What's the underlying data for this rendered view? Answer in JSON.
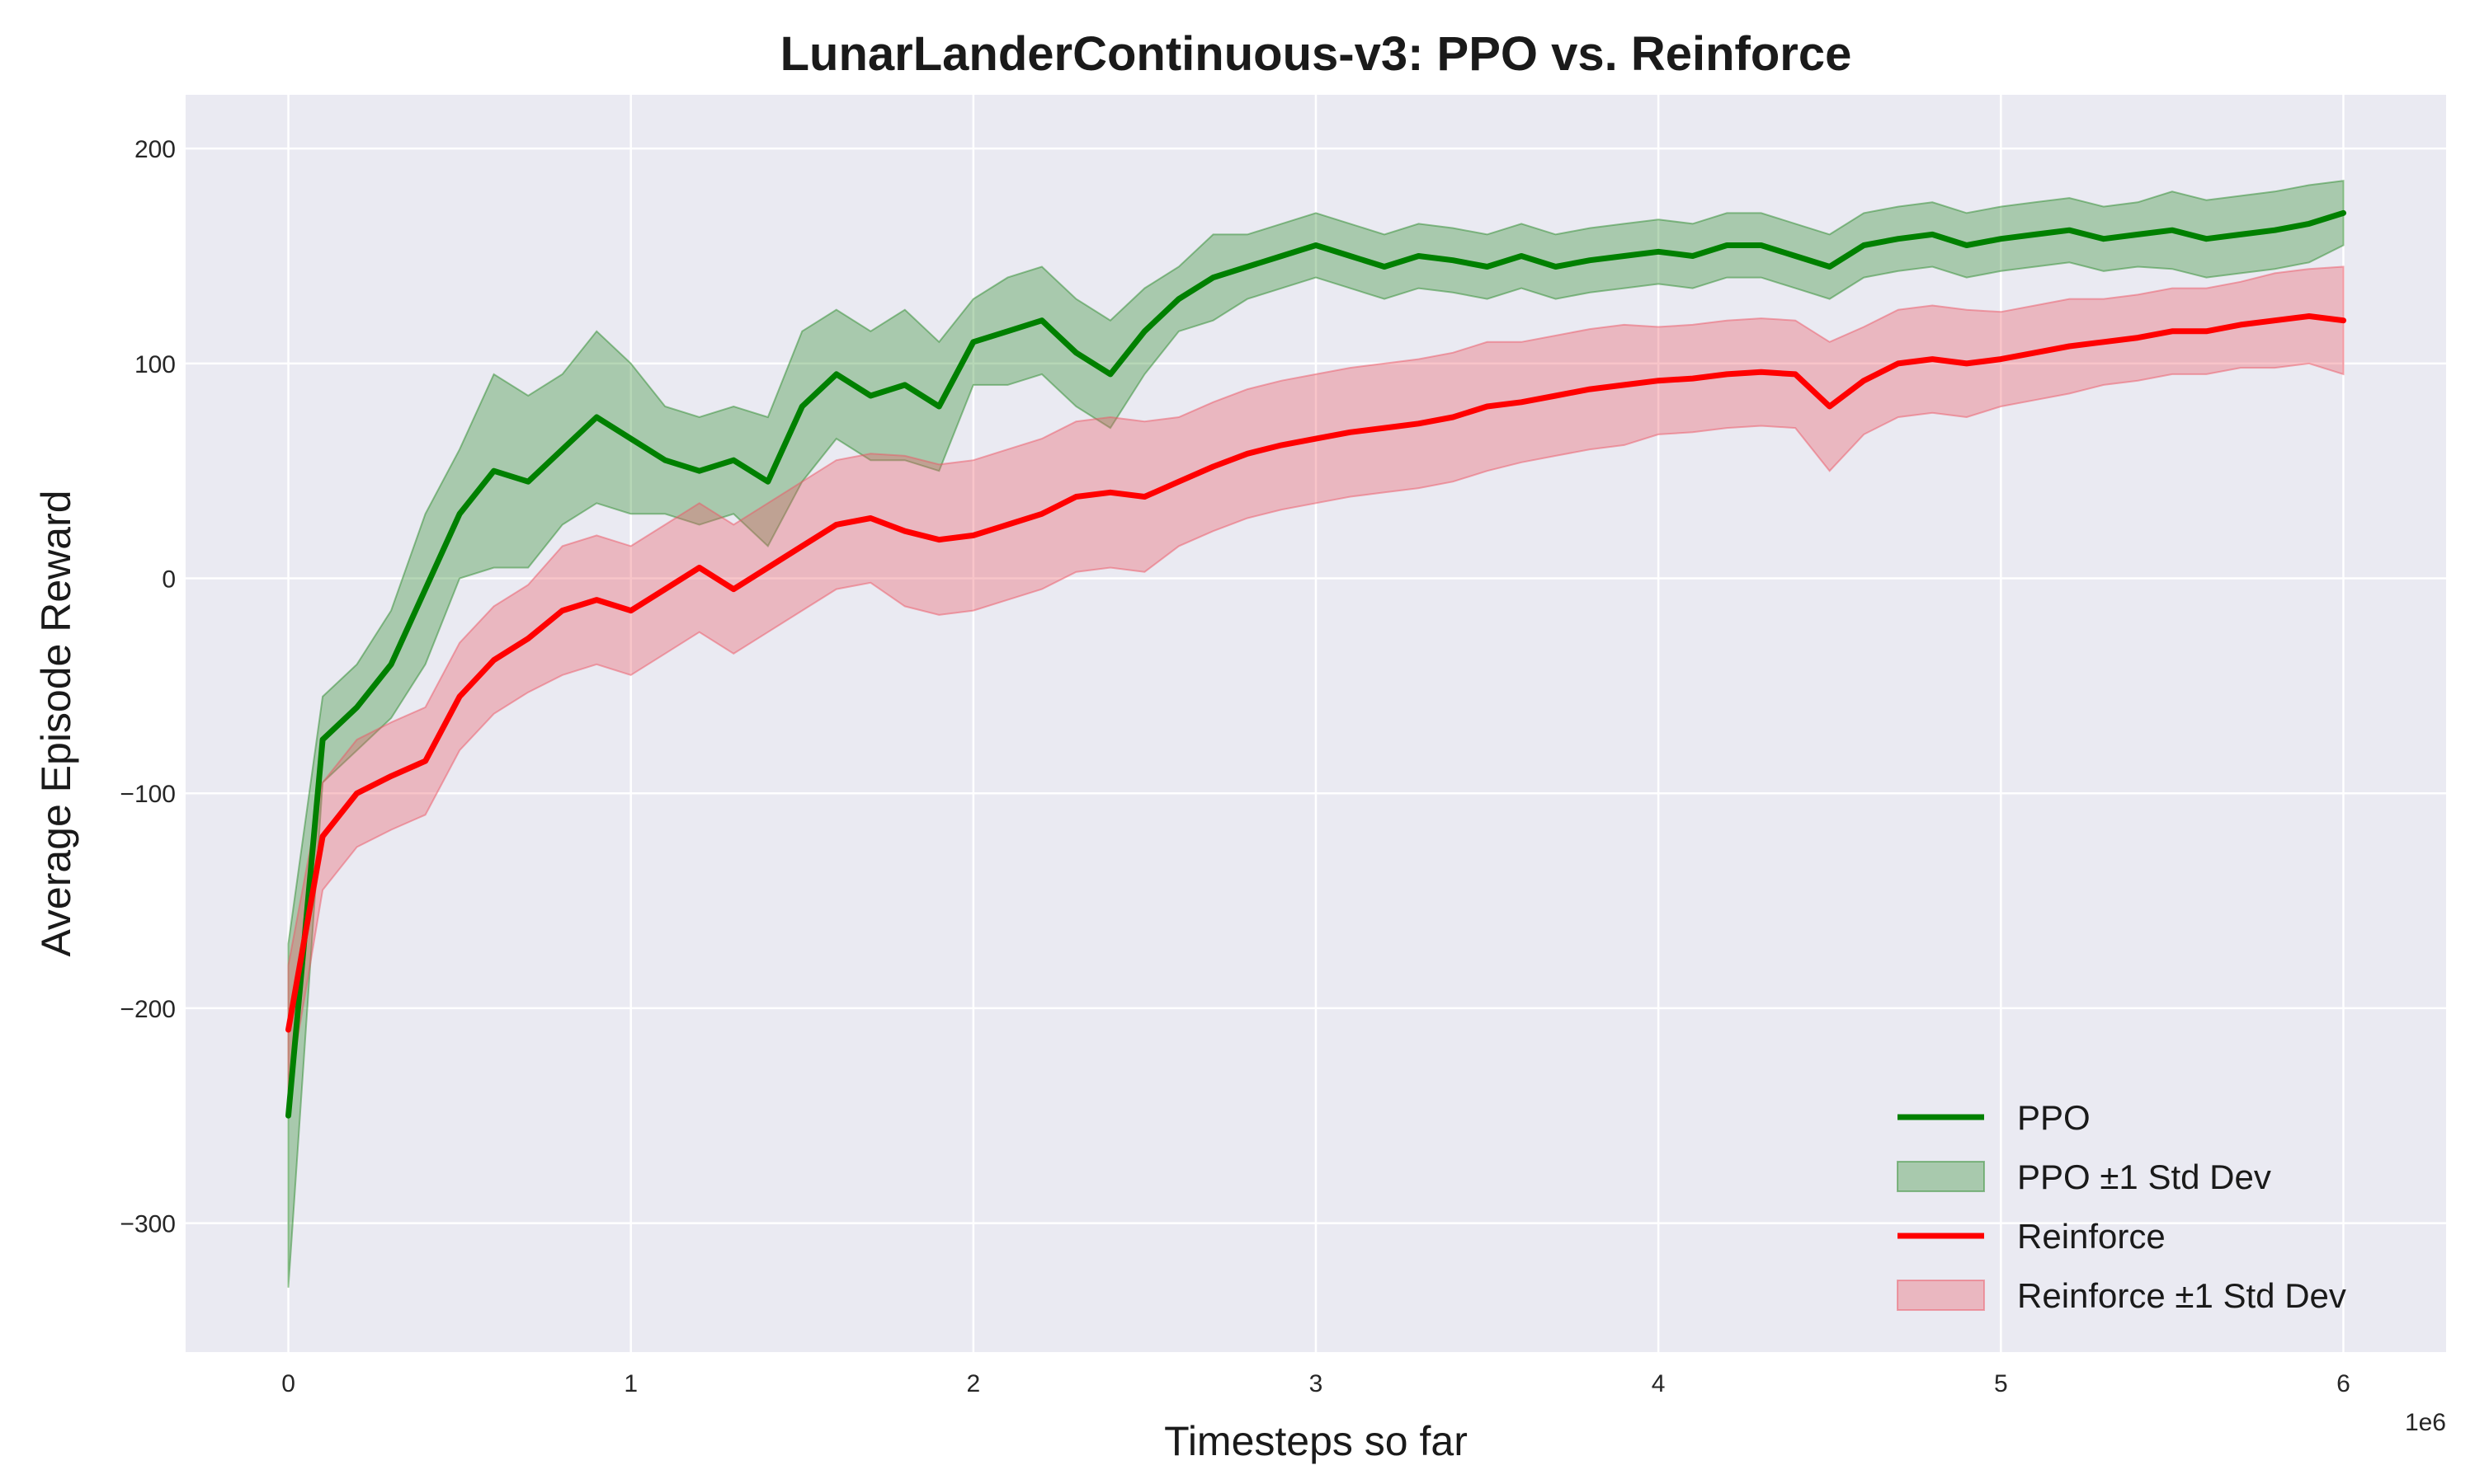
{
  "chart_data": {
    "type": "line",
    "title": "LunarLanderContinuous-v3: PPO vs. Reinforce",
    "xlabel": "Timesteps so far",
    "ylabel": "Average Episode Reward",
    "x_offset_label": "1e6",
    "xlim": [
      -0.3,
      6.3
    ],
    "ylim": [
      -360,
      225
    ],
    "xticks": [
      0,
      1,
      2,
      3,
      4,
      5,
      6
    ],
    "xtick_labels": [
      "0",
      "1",
      "2",
      "3",
      "4",
      "5",
      "6"
    ],
    "yticks": [
      -300,
      -200,
      -100,
      0,
      100,
      200
    ],
    "ytick_labels": [
      "−300",
      "−200",
      "−100",
      "0",
      "100",
      "200"
    ],
    "grid": true,
    "legend_position": "lower-right",
    "x": [
      0,
      0.1,
      0.2,
      0.3,
      0.4,
      0.5,
      0.6,
      0.7,
      0.8,
      0.9,
      1.0,
      1.1,
      1.2,
      1.3,
      1.4,
      1.5,
      1.6,
      1.7,
      1.8,
      1.9,
      2.0,
      2.1,
      2.2,
      2.3,
      2.4,
      2.5,
      2.6,
      2.7,
      2.8,
      2.9,
      3.0,
      3.1,
      3.2,
      3.3,
      3.4,
      3.5,
      3.6,
      3.7,
      3.8,
      3.9,
      4.0,
      4.1,
      4.2,
      4.3,
      4.4,
      4.5,
      4.6,
      4.7,
      4.8,
      4.9,
      5.0,
      5.1,
      5.2,
      5.3,
      5.4,
      5.5,
      5.6,
      5.7,
      5.8,
      5.9,
      6.0
    ],
    "series": [
      {
        "name": "PPO",
        "band_name": "PPO ±1 Std Dev",
        "color": "#008000",
        "band_color": "#2e8b2e",
        "y": [
          -250,
          -75,
          -60,
          -40,
          -5,
          30,
          50,
          45,
          60,
          75,
          65,
          55,
          50,
          55,
          45,
          80,
          95,
          85,
          90,
          80,
          110,
          115,
          120,
          105,
          95,
          115,
          130,
          140,
          145,
          150,
          155,
          150,
          145,
          150,
          148,
          145,
          150,
          145,
          148,
          150,
          152,
          150,
          155,
          155,
          150,
          145,
          155,
          158,
          160,
          155,
          158,
          160,
          162,
          158,
          160,
          162,
          158,
          160,
          162,
          165,
          170
        ],
        "std": [
          80,
          20,
          20,
          25,
          35,
          30,
          45,
          40,
          35,
          40,
          35,
          25,
          25,
          25,
          30,
          35,
          30,
          30,
          35,
          30,
          20,
          25,
          25,
          25,
          25,
          20,
          15,
          20,
          15,
          15,
          15,
          15,
          15,
          15,
          15,
          15,
          15,
          15,
          15,
          15,
          15,
          15,
          15,
          15,
          15,
          15,
          15,
          15,
          15,
          15,
          15,
          15,
          15,
          15,
          15,
          18,
          18,
          18,
          18,
          18,
          15
        ]
      },
      {
        "name": "Reinforce",
        "band_name": "Reinforce ±1 Std Dev",
        "color": "#ff0000",
        "band_color": "#ec5865",
        "y": [
          -210,
          -120,
          -100,
          -92,
          -85,
          -55,
          -38,
          -28,
          -15,
          -10,
          -15,
          -5,
          5,
          -5,
          5,
          15,
          25,
          28,
          22,
          18,
          20,
          25,
          30,
          38,
          40,
          38,
          45,
          52,
          58,
          62,
          65,
          68,
          70,
          72,
          75,
          80,
          82,
          85,
          88,
          90,
          92,
          93,
          95,
          96,
          95,
          80,
          92,
          100,
          102,
          100,
          102,
          105,
          108,
          110,
          112,
          115,
          115,
          118,
          120,
          122,
          120
        ],
        "std": [
          30,
          25,
          25,
          25,
          25,
          25,
          25,
          25,
          30,
          30,
          30,
          30,
          30,
          30,
          30,
          30,
          30,
          30,
          35,
          35,
          35,
          35,
          35,
          35,
          35,
          35,
          30,
          30,
          30,
          30,
          30,
          30,
          30,
          30,
          30,
          30,
          28,
          28,
          28,
          28,
          25,
          25,
          25,
          25,
          25,
          30,
          25,
          25,
          25,
          25,
          22,
          22,
          22,
          20,
          20,
          20,
          20,
          20,
          22,
          22,
          25
        ]
      }
    ]
  }
}
